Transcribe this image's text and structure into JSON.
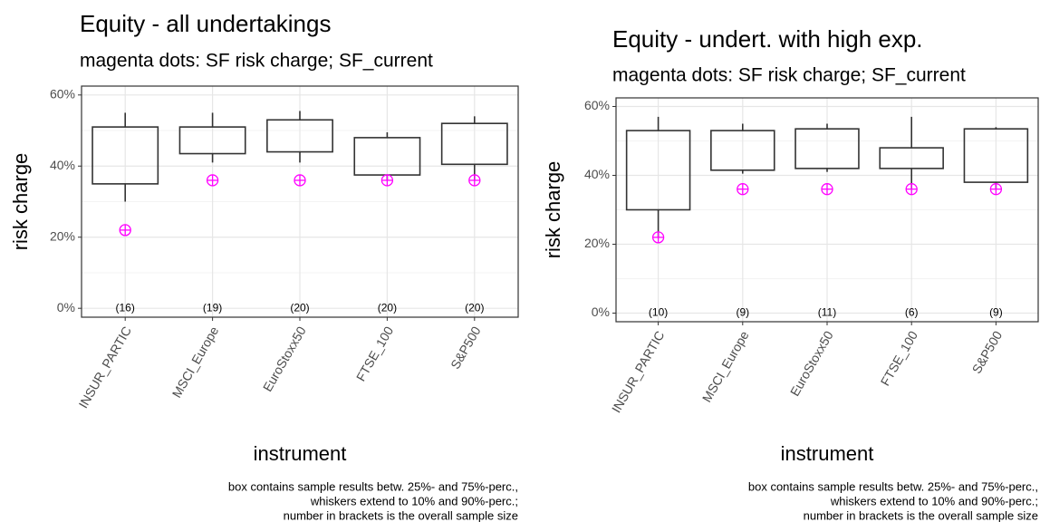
{
  "chart_data": [
    {
      "type": "box",
      "title": "Equity - all undertakings",
      "subtitle": "magenta dots: SF risk charge; SF_current",
      "x_label": "instrument",
      "y_label": "risk charge",
      "categories": [
        "INSUR_PARTIC",
        "MSCI_Europe",
        "EuroStoxx50",
        "FTSE_100",
        "S&P500"
      ],
      "whisker_low": [
        30,
        41,
        41,
        36,
        36
      ],
      "q1": [
        35,
        43.5,
        44,
        37.5,
        40.5
      ],
      "q3": [
        51,
        51,
        53,
        48,
        52
      ],
      "whisker_high": [
        55,
        55,
        55.5,
        49.5,
        54
      ],
      "sf_values": [
        22,
        36,
        36,
        36,
        36
      ],
      "sf_color": "#ff00ff",
      "box_color": "#333333",
      "n": [
        16,
        19,
        20,
        20,
        20
      ],
      "n_labels": [
        "(16)",
        "(19)",
        "(20)",
        "(20)",
        "(20)"
      ],
      "ylim": [
        -2.5,
        62.5
      ],
      "yticks": [
        {
          "value": 0,
          "label": "0%"
        },
        {
          "value": 20,
          "label": "20%"
        },
        {
          "value": 40,
          "label": "40%"
        },
        {
          "value": 60,
          "label": "60%"
        }
      ],
      "grid": true,
      "caption": [
        "box contains sample results betw. 25%- and 75%-perc.,",
        "whiskers extend to 10% and 90%-perc.;",
        "number in brackets is the overall sample size"
      ]
    },
    {
      "type": "box",
      "title": "Equity - undert. with high exp.",
      "subtitle": "magenta dots: SF risk charge; SF_current",
      "x_label": "instrument",
      "y_label": "risk charge",
      "categories": [
        "INSUR_PARTIC",
        "MSCI_Europe",
        "EuroStoxx50",
        "FTSE_100",
        "S&P500"
      ],
      "whisker_low": [
        22,
        40.5,
        41,
        36,
        36
      ],
      "q1": [
        30,
        41.5,
        42,
        42,
        38
      ],
      "q3": [
        53,
        53,
        53.5,
        48,
        53.5
      ],
      "whisker_high": [
        57,
        55,
        55,
        57,
        54
      ],
      "sf_values": [
        22,
        36,
        36,
        36,
        36
      ],
      "sf_color": "#ff00ff",
      "box_color": "#333333",
      "n": [
        10,
        9,
        11,
        6,
        9
      ],
      "n_labels": [
        "(10)",
        "(9)",
        "(11)",
        "(6)",
        "(9)"
      ],
      "ylim": [
        -2.5,
        62.5
      ],
      "yticks": [
        {
          "value": 0,
          "label": "0%"
        },
        {
          "value": 20,
          "label": "20%"
        },
        {
          "value": 40,
          "label": "40%"
        },
        {
          "value": 60,
          "label": "60%"
        }
      ],
      "grid": true,
      "caption": [
        "box contains sample results betw. 25%- and 75%-perc.,",
        "whiskers extend to 10% and 90%-perc.;",
        "number in brackets is the overall sample size"
      ]
    }
  ]
}
